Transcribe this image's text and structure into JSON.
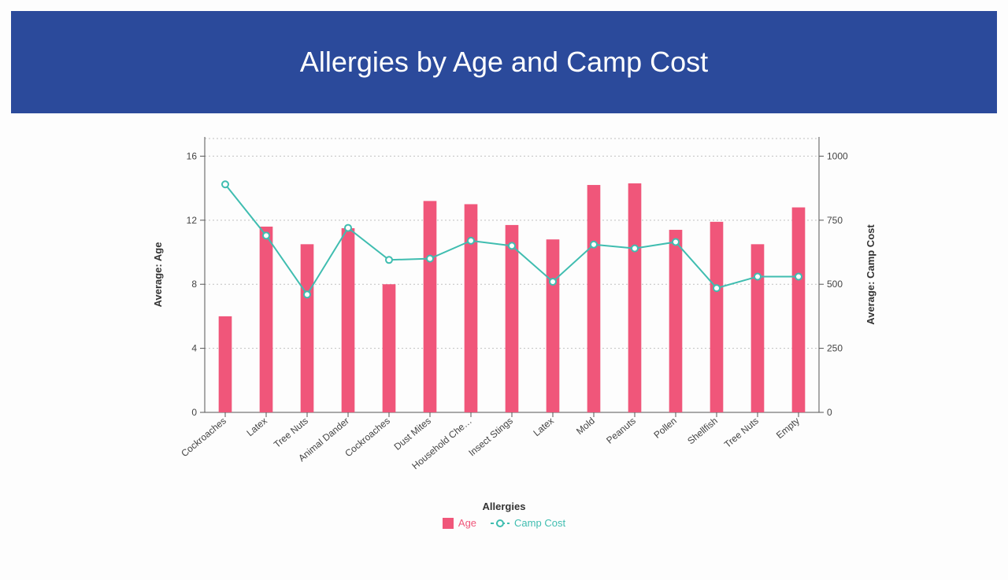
{
  "header": {
    "title": "Allergies by Age and Camp Cost"
  },
  "chart": {
    "type": "bar+line",
    "background_color": "#ffffff",
    "grid_color": "#9a9a9a",
    "bar_color": "#f0567a",
    "line_color": "#3fbdb0",
    "marker_fill": "#ffffff",
    "bar_width": 0.32,
    "line_width": 2,
    "marker_radius": 4,
    "xlabel": "Allergies",
    "y_left": {
      "label": "Average: Age",
      "lim": [
        0,
        17.2
      ],
      "ticks": [
        0,
        4,
        8,
        12,
        16
      ]
    },
    "y_right": {
      "label": "Average: Camp Cost",
      "lim": [
        0,
        1075
      ],
      "ticks": [
        0,
        250,
        500,
        750,
        1000
      ]
    },
    "categories": [
      "Cockroaches",
      "Latex",
      "Tree Nuts",
      "Animal Dander",
      "Cockroaches",
      "Dust Mites",
      "Household Che…",
      "Insect Stings",
      "Latex",
      "Mold",
      "Peanuts",
      "Pollen",
      "Shellfish",
      "Tree Nuts",
      "Empty"
    ],
    "age_values": [
      6.0,
      11.6,
      10.5,
      11.5,
      8.0,
      13.2,
      13.0,
      11.7,
      10.8,
      14.2,
      14.3,
      11.4,
      11.9,
      10.5,
      12.8
    ],
    "cost_values": [
      890,
      690,
      460,
      720,
      595,
      600,
      670,
      650,
      510,
      655,
      640,
      665,
      485,
      530,
      530
    ],
    "legend": {
      "age": "Age",
      "cost": "Camp Cost"
    },
    "label_fontsize": 13
  }
}
